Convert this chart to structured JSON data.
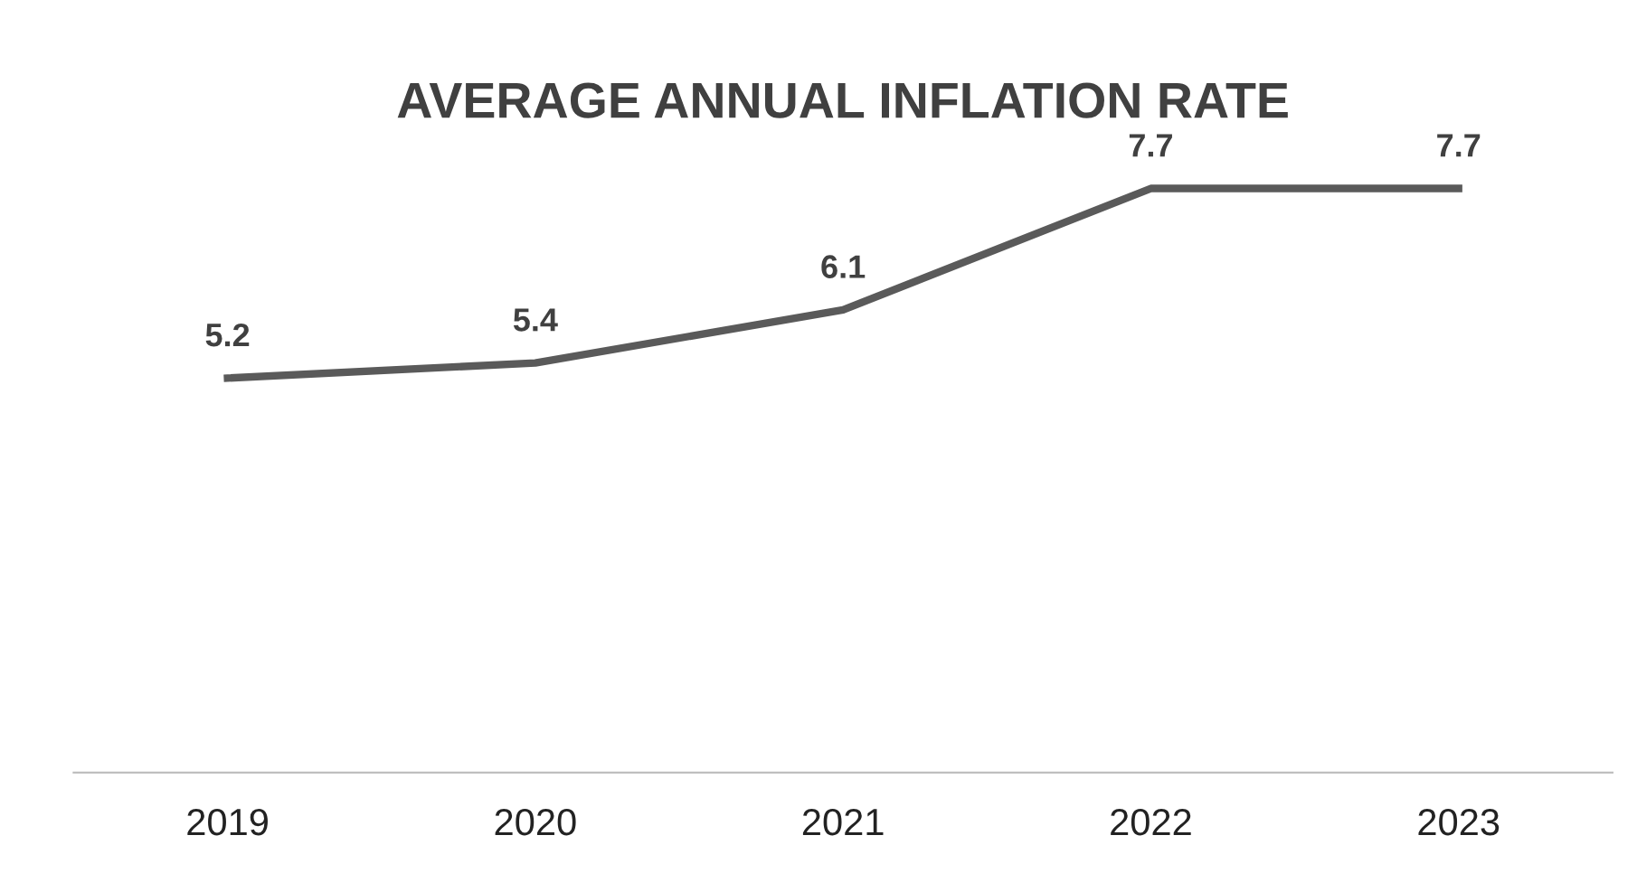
{
  "chart_data": {
    "type": "line",
    "title": "AVERAGE ANNUAL INFLATION RATE",
    "categories": [
      "2019",
      "2020",
      "2021",
      "2022",
      "2023"
    ],
    "series": [
      {
        "color": "#5a5a5a",
        "values": [
          5.2,
          5.4,
          6.1,
          7.7,
          7.7
        ]
      }
    ],
    "tick_labels": "x",
    "data_labels": true,
    "grid": false,
    "legend": false,
    "line_style": "solid"
  }
}
